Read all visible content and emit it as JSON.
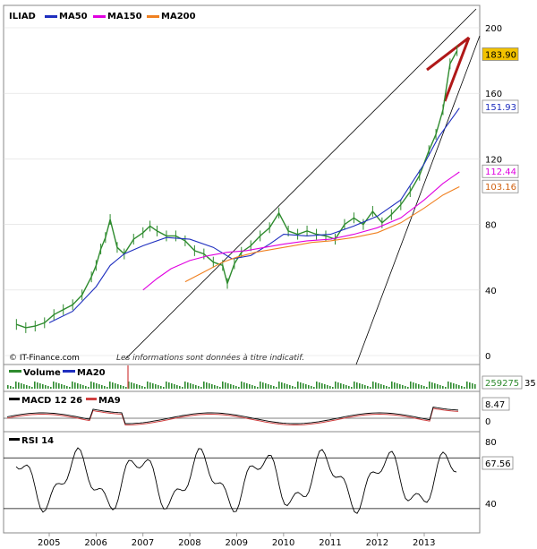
{
  "chart_data": [
    {
      "type": "line",
      "title": "ILIAD",
      "legend": [
        {
          "name": "MA50",
          "color": "#1f2fbf"
        },
        {
          "name": "MA150",
          "color": "#e000e0"
        },
        {
          "name": "MA200",
          "color": "#f08020"
        }
      ],
      "x_ticks": [
        "2005",
        "2006",
        "2007",
        "2008",
        "2009",
        "2010",
        "2011",
        "2012",
        "2013"
      ],
      "y_ticks": [
        0,
        40,
        80,
        120,
        160,
        200
      ],
      "ylim": [
        0,
        205
      ],
      "last_values": [
        {
          "label": "183.90",
          "bg": "#f2c200",
          "color": "#000000"
        },
        {
          "label": "151.93",
          "bg": "#ffffff",
          "color": "#1f2fbf"
        },
        {
          "label": "112.44",
          "bg": "#ffffff",
          "color": "#e000e0"
        },
        {
          "label": "103.16",
          "bg": "#ffffff",
          "color": "#d06010"
        }
      ],
      "series": [
        {
          "name": "ILIAD",
          "color": "#2e8b2e",
          "x": [
            2004.3,
            2004.5,
            2004.7,
            2004.9,
            2005.1,
            2005.3,
            2005.5,
            2005.7,
            2005.9,
            2006.0,
            2006.1,
            2006.2,
            2006.3,
            2006.45,
            2006.6,
            2006.8,
            2007.0,
            2007.15,
            2007.3,
            2007.5,
            2007.7,
            2007.9,
            2008.1,
            2008.3,
            2008.5,
            2008.7,
            2008.8,
            2008.95,
            2009.1,
            2009.3,
            2009.5,
            2009.7,
            2009.9,
            2010.1,
            2010.3,
            2010.5,
            2010.7,
            2010.9,
            2011.1,
            2011.3,
            2011.5,
            2011.7,
            2011.9,
            2012.1,
            2012.3,
            2012.5,
            2012.7,
            2012.9,
            2013.1,
            2013.25,
            2013.4,
            2013.55,
            2013.7
          ],
          "y": [
            19,
            17,
            18,
            20,
            25,
            28,
            31,
            37,
            48,
            55,
            65,
            72,
            83,
            66,
            62,
            71,
            75,
            79,
            76,
            73,
            73,
            70,
            64,
            62,
            57,
            55,
            44,
            56,
            63,
            67,
            73,
            78,
            87,
            76,
            74,
            76,
            74,
            73,
            71,
            80,
            84,
            80,
            88,
            81,
            86,
            92,
            100,
            110,
            125,
            135,
            150,
            178,
            186
          ]
        },
        {
          "name": "MA50",
          "color": "#1f2fbf",
          "x": [
            2005.0,
            2005.5,
            2006.0,
            2006.3,
            2006.6,
            2007.0,
            2007.5,
            2008.0,
            2008.5,
            2008.9,
            2009.3,
            2009.7,
            2010.0,
            2010.5,
            2011.0,
            2011.5,
            2012.0,
            2012.5,
            2013.0,
            2013.3,
            2013.55,
            2013.75
          ],
          "y": [
            20,
            27,
            42,
            55,
            62,
            67,
            72,
            71,
            66,
            59,
            61,
            68,
            74,
            73,
            74,
            79,
            85,
            95,
            117,
            133,
            143,
            151
          ]
        },
        {
          "name": "MA150",
          "color": "#e000e0",
          "x": [
            2007.0,
            2007.3,
            2007.6,
            2008.0,
            2008.4,
            2008.8,
            2009.2,
            2009.6,
            2010.0,
            2010.5,
            2011.0,
            2011.5,
            2012.0,
            2012.5,
            2013.0,
            2013.4,
            2013.75
          ],
          "y": [
            40,
            47,
            53,
            58,
            61,
            63,
            64,
            66,
            68,
            70,
            71,
            74,
            78,
            84,
            95,
            105,
            112
          ]
        },
        {
          "name": "MA200",
          "color": "#f08020",
          "x": [
            2007.9,
            2008.3,
            2008.7,
            2009.0,
            2009.4,
            2009.8,
            2010.2,
            2010.6,
            2011.0,
            2011.5,
            2012.0,
            2012.5,
            2013.0,
            2013.4,
            2013.75
          ],
          "y": [
            45,
            51,
            57,
            60,
            63,
            65,
            67,
            69,
            70,
            72,
            75,
            81,
            90,
            98,
            103
          ]
        }
      ]
    },
    {
      "type": "bar",
      "title": "Volume",
      "legend": [
        {
          "name": "Volume",
          "color": "#2e8b2e"
        },
        {
          "name": "MA20",
          "color": "#1f2fbf"
        }
      ],
      "last_values": [
        {
          "label": "259275",
          "bg": "#ffffff",
          "color": "#2e8b2e"
        }
      ],
      "cut_label": "35"
    },
    {
      "type": "line",
      "title": "MACD 12 26",
      "legend": [
        {
          "name": "MACD 12 26",
          "color": "#000000"
        },
        {
          "name": "MA9",
          "color": "#d04040"
        }
      ],
      "y_ticks": [
        0
      ],
      "last_values": [
        {
          "label": "8.47",
          "bg": "#ffffff",
          "color": "#000000"
        }
      ]
    },
    {
      "type": "line",
      "title": "RSI 14",
      "y_ticks": [
        40,
        80
      ],
      "reference_lines": [
        30,
        70
      ],
      "last_values": [
        {
          "label": "67.56",
          "bg": "#ffffff",
          "color": "#000000"
        }
      ]
    }
  ],
  "footer": {
    "copyright": "© IT-Finance.com",
    "disclaimer": "Les informations sont données à titre indicatif."
  }
}
